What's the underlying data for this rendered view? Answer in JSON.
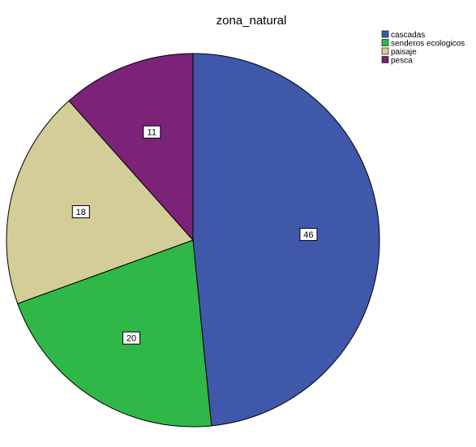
{
  "chart_data": {
    "type": "pie",
    "title": "zona_natural",
    "categories": [
      "cascadas",
      "senderos ecologicos",
      "paisaje",
      "pesca"
    ],
    "values": [
      46,
      20,
      18,
      11
    ],
    "colors": [
      "#3f58aa",
      "#2fb848",
      "#d3cd98",
      "#7a2378"
    ],
    "data_labels": [
      "46",
      "20",
      "18",
      "11"
    ],
    "start_angle_deg": 0,
    "direction": "clockwise",
    "legend_position": "top-right",
    "grid": false
  }
}
